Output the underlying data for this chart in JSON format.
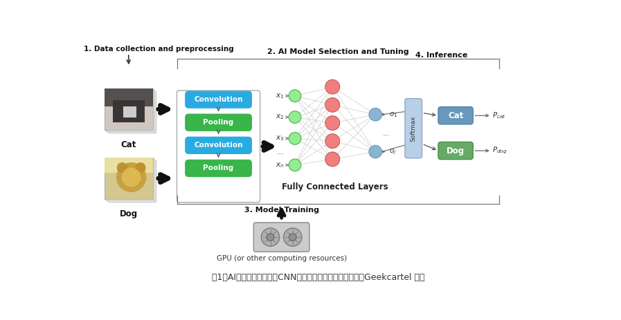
{
  "bg_color": "#ffffff",
  "label1": "1. Data collection and preprocessing",
  "label2": "2. AI Model Selection and Tuning",
  "label3": "3. Model Training",
  "label4": "4. Inference",
  "cat_label": "Cat",
  "dog_label": "Dog",
  "conv_color": "#29ABE2",
  "pool_color": "#39B54A",
  "softmax_color": "#B8CFE8",
  "cat_box_color": "#6699BB",
  "dog_box_color": "#66AA66",
  "nn_input_color": "#90EE90",
  "nn_input_ec": "#55aa55",
  "nn_hidden_color": "#F08080",
  "nn_hidden_ec": "#cc5555",
  "nn_output_color": "#8ab4d4",
  "nn_output_ec": "#6699bb",
  "fc_label": "Fully Connected Layers",
  "gpu_label": "GPU (or other computing resources)",
  "caption": "图1：AI开发过程（以使用CNN进行猫狗分类为例）来源：由Geekcartel 制作"
}
